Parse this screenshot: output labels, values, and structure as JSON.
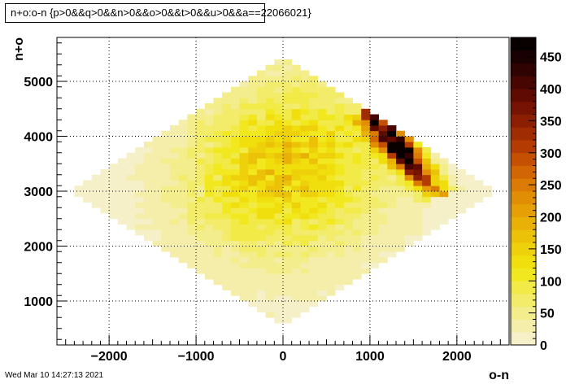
{
  "chart_data": {
    "type": "heatmap",
    "title": "n+o:o-n {p>0&&q>0&&n>0&&o>0&&t>0&&u>0&&a==22066021}",
    "xlabel": "o-n",
    "ylabel": "n+o",
    "xlim": [
      -2600,
      2600
    ],
    "ylim": [
      200,
      5800
    ],
    "grid": true,
    "x_ticks": [
      -2000,
      -1000,
      0,
      1000,
      2000
    ],
    "x_tick_labels": [
      "−2000",
      "−1000",
      "0",
      "1000",
      "2000"
    ],
    "y_ticks": [
      1000,
      2000,
      3000,
      4000,
      5000
    ],
    "y_tick_labels": [
      "1000",
      "2000",
      "3000",
      "4000",
      "5000"
    ],
    "colorbar": {
      "min": 0,
      "max": 480,
      "ticks": [
        0,
        50,
        100,
        150,
        200,
        250,
        300,
        350,
        400,
        450
      ],
      "tick_labels": [
        "0",
        "50",
        "100",
        "150",
        "200",
        "250",
        "300",
        "350",
        "400",
        "450"
      ],
      "colors": [
        "#f5f0c8",
        "#f4eeaa",
        "#f3ed8c",
        "#f2ec6a",
        "#f1ea47",
        "#f1e81f",
        "#f0df0c",
        "#eed10a",
        "#ecc208",
        "#e9b106",
        "#e6a005",
        "#e28e04",
        "#dc7b03",
        "#d26602",
        "#c55002",
        "#b43c02",
        "#a02c02",
        "#8c1e02",
        "#761302",
        "#5f0b02",
        "#470601",
        "#2f0301",
        "#190101",
        "#080000"
      ]
    },
    "density_model": {
      "base_region": {
        "u_halfwidth": 2400,
        "v_center": 3000,
        "v_halfwidth": 2500,
        "value": 12
      },
      "blobs": [
        {
          "x_center": 200,
          "y_center": 3500,
          "x_sigma": 700,
          "y_sigma": 1000,
          "peak": 130
        },
        {
          "x_center": -600,
          "y_center": 3000,
          "x_sigma": 600,
          "y_sigma": 900,
          "peak": 40
        }
      ],
      "ridge": {
        "x_start": 950,
        "y_start": 4500,
        "x_end": 1800,
        "y_end": 2900,
        "width": 120,
        "peak": 460
      }
    },
    "timestamp": "Wed Mar 10 14:27:13 2021"
  }
}
